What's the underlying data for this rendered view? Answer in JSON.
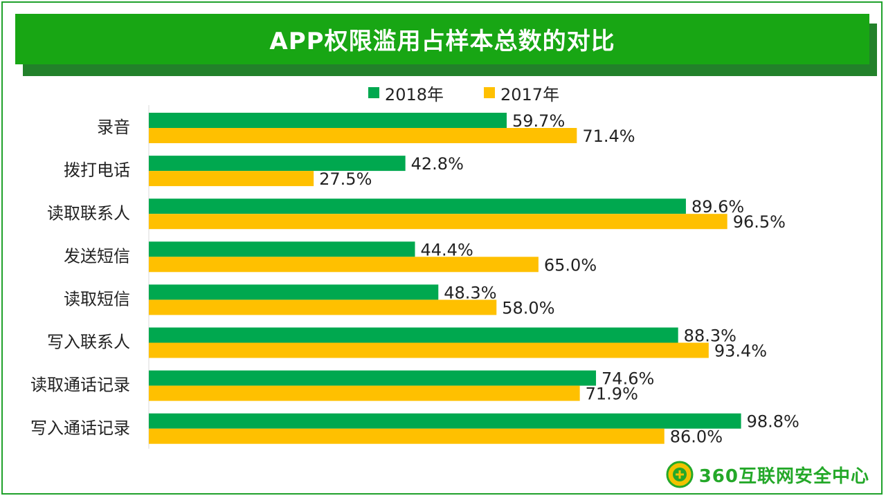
{
  "title": "APP权限滥用占样本总数的对比",
  "legend": [
    {
      "label": "2018年",
      "color": "#00a84f"
    },
    {
      "label": "2017年",
      "color": "#ffc000"
    }
  ],
  "logo": {
    "text": "360互联网安全中心"
  },
  "chart_data": {
    "type": "bar",
    "orientation": "horizontal",
    "categories": [
      "录音",
      "拨打电话",
      "读取联系人",
      "发送短信",
      "读取短信",
      "写入联系人",
      "读取通话记录",
      "写入通话记录"
    ],
    "series": [
      {
        "name": "2018年",
        "color": "#00a84f",
        "values": [
          59.7,
          42.8,
          89.6,
          44.4,
          48.3,
          88.3,
          74.6,
          98.8
        ],
        "labels": [
          "59.7%",
          "42.8%",
          "89.6%",
          "44.4%",
          "48.3%",
          "88.3%",
          "74.6%",
          "98.8%"
        ]
      },
      {
        "name": "2017年",
        "color": "#ffc000",
        "values": [
          71.4,
          27.5,
          96.5,
          65.0,
          58.0,
          93.4,
          71.9,
          86.0
        ],
        "labels": [
          "71.4%",
          "27.5%",
          "96.5%",
          "65.0%",
          "58.0%",
          "93.4%",
          "71.9%",
          "86.0%"
        ]
      }
    ],
    "xlim": [
      0,
      100
    ],
    "grid": false,
    "legend_position": "top"
  }
}
